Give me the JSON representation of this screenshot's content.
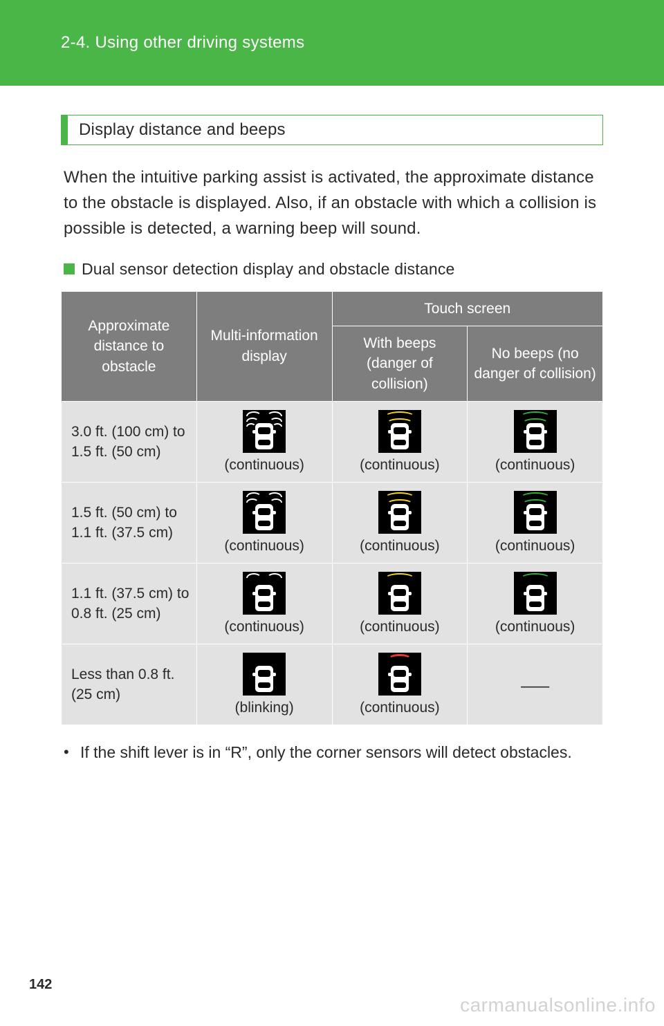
{
  "header": {
    "section": "2-4. Using other driving systems"
  },
  "section_heading": "Display distance and beeps",
  "intro": "When the intuitive parking assist is activated, the approximate distance to the obstacle is displayed. Also, if an obstacle with which a collision is possible is detected, a warning beep will sound.",
  "subheading": "Dual sensor detection display and obstacle distance",
  "table": {
    "columns": {
      "col1": "Approximate distance to obstacle",
      "col2": "Multi-information display",
      "touch_group": "Touch screen",
      "col3": "With beeps (danger of collision)",
      "col4": "No beeps (no danger of collision)"
    },
    "colors": {
      "header_bg": "#7e7e7e",
      "header_text": "#ffffff",
      "body_bg": "#e2e2e2",
      "border": "#ffffff",
      "icon_bg": "#000000",
      "arc_white": "#ffffff",
      "arc_yellow": "#f4d41f",
      "arc_green": "#2fae3a",
      "arc_red": "#e63a2e"
    },
    "rows": [
      {
        "distance": "3.0 ft. (100 cm) to 1.5 ft. (50 cm)",
        "mid": {
          "style": "split3",
          "color": "white",
          "label": "(continuous)"
        },
        "beeps": {
          "style": "arcs3",
          "color": "yellow",
          "label": "(continuous)"
        },
        "nobeeps": {
          "style": "arcs3",
          "color": "green",
          "label": "(continuous)"
        }
      },
      {
        "distance": "1.5 ft. (50 cm) to 1.1 ft. (37.5 cm)",
        "mid": {
          "style": "split2",
          "color": "white",
          "label": "(continuous)"
        },
        "beeps": {
          "style": "arcs2",
          "color": "yellow",
          "label": "(continuous)"
        },
        "nobeeps": {
          "style": "arcs2",
          "color": "green",
          "label": "(continuous)"
        }
      },
      {
        "distance": "1.1 ft. (37.5 cm) to 0.8 ft. (25 cm)",
        "mid": {
          "style": "split1",
          "color": "white",
          "label": "(continuous)"
        },
        "beeps": {
          "style": "arcs1",
          "color": "yellow",
          "label": "(continuous)"
        },
        "nobeeps": {
          "style": "arcs1",
          "color": "green",
          "label": "(continuous)"
        }
      },
      {
        "distance": "Less than 0.8 ft. (25 cm)",
        "mid": {
          "style": "none",
          "color": "white",
          "label": "(blinking)"
        },
        "beeps": {
          "style": "single",
          "color": "red",
          "label": "(continuous)"
        },
        "nobeeps": {
          "style": "dash",
          "label": "⸺"
        }
      }
    ]
  },
  "bullet": "If the shift lever is in “R”, only the corner sensors will detect obstacles.",
  "page_number": "142",
  "watermark": "carmanualsonline.info",
  "accent_color": "#4bb648"
}
